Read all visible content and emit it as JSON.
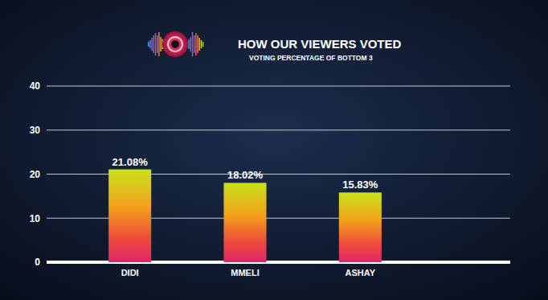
{
  "chart_data": {
    "type": "bar",
    "title": "HOW OUR VIEWERS VOTED",
    "subtitle": "VOTING PERCENTAGE OF BOTTOM 3",
    "categories": [
      "DIDI",
      "MMELI",
      "ASHAY"
    ],
    "values": [
      21.08,
      18.02,
      15.83
    ],
    "value_labels": [
      "21.08%",
      "18.02%",
      "15.83%"
    ],
    "data_labels": true,
    "ylim": [
      0,
      40
    ],
    "yticks": [
      0,
      10,
      20,
      30,
      40
    ],
    "grid": true
  }
}
